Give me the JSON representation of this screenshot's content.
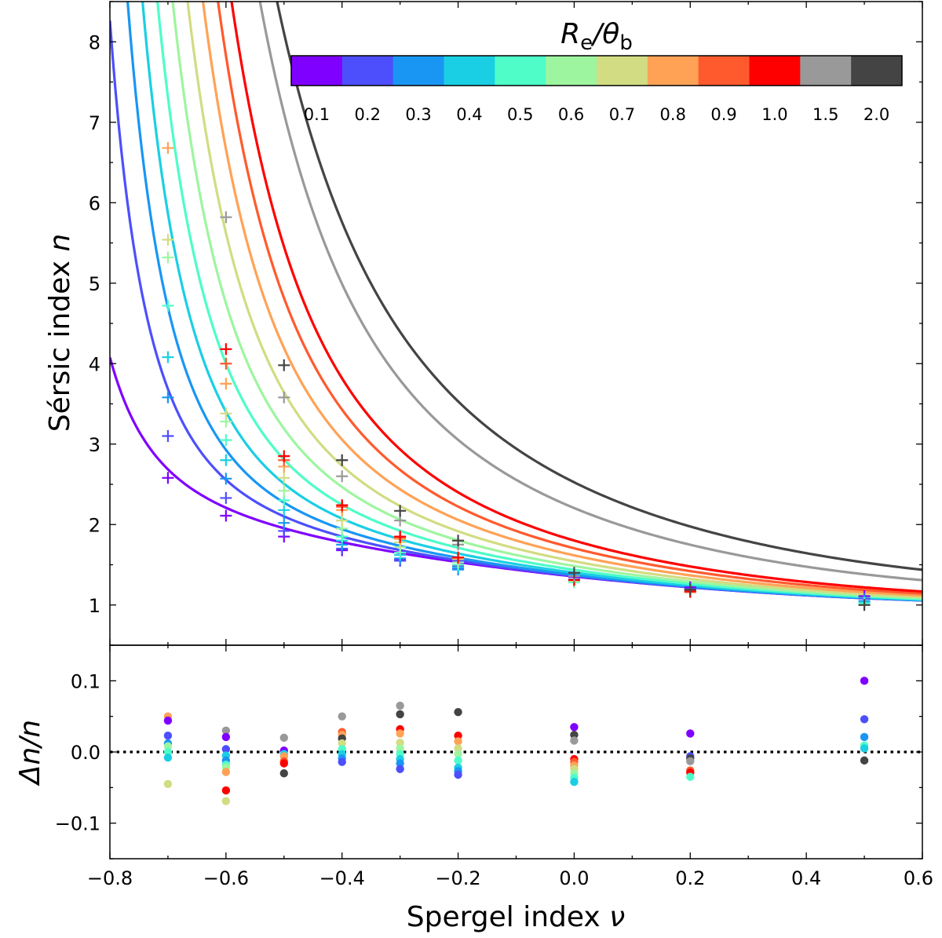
{
  "chart_data": [
    {
      "type": "line",
      "panel": "top",
      "ylabel_text": "Sérsic index",
      "ylabel_var": "n",
      "xlabel": "",
      "xlim": [
        -0.8,
        0.6
      ],
      "ylim": [
        0.5,
        8.5
      ],
      "yticks": [
        1,
        2,
        3,
        4,
        5,
        6,
        7,
        8
      ],
      "ytick_labels": [
        "1",
        "2",
        "3",
        "4",
        "5",
        "6",
        "7",
        "8"
      ],
      "colorbar": {
        "title_main": "R",
        "title_sub1": "e",
        "title_mid": "/θ",
        "title_sub2": "b",
        "labels": [
          "0.1",
          "0.2",
          "0.3",
          "0.4",
          "0.5",
          "0.6",
          "0.7",
          "0.8",
          "0.9",
          "1.0",
          "1.5",
          "2.0"
        ],
        "colors": [
          "#7f00ff",
          "#4d4ffc",
          "#1996f3",
          "#1acfe3",
          "#4efdc8",
          "#9ef5a0",
          "#d2dc82",
          "#ffa256",
          "#ff5a2d",
          "#ff0000",
          "#999999",
          "#444444"
        ]
      },
      "curve_model": "n(ν) = 1.325 − 0.70·ν + 0.40·ν² + A / (ν + 1)^p",
      "series": [
        {
          "name": "0.1",
          "color": "#7f00ff",
          "A": 0.0295,
          "p": 2.6
        },
        {
          "name": "0.2",
          "color": "#4d4ffc",
          "A": 0.0355,
          "p": 3.2
        },
        {
          "name": "0.3",
          "color": "#1996f3",
          "A": 0.0505,
          "p": 3.3
        },
        {
          "name": "0.4",
          "color": "#1acfe3",
          "A": 0.077,
          "p": 3.25
        },
        {
          "name": "0.5",
          "color": "#4efdc8",
          "A": 0.1125,
          "p": 3.2
        },
        {
          "name": "0.6",
          "color": "#9ef5a0",
          "A": 0.1595,
          "p": 3.15
        },
        {
          "name": "0.7",
          "color": "#d2dc82",
          "A": 0.218,
          "p": 3.1
        },
        {
          "name": "0.8",
          "color": "#ffa256",
          "A": 0.292,
          "p": 3.05
        },
        {
          "name": "0.9",
          "color": "#ff5a2d",
          "A": 0.38,
          "p": 3.0
        },
        {
          "name": "1.0",
          "color": "#ff0000",
          "A": 0.476,
          "p": 2.95
        },
        {
          "name": "1.5",
          "color": "#999999",
          "A": 0.88,
          "p": 2.6
        },
        {
          "name": "2.0",
          "color": "#444444",
          "A": 1.2,
          "p": 2.4
        }
      ],
      "measured_points": [
        {
          "series": 0,
          "x": -0.7,
          "y": 2.58
        },
        {
          "series": 0,
          "x": -0.6,
          "y": 2.11
        },
        {
          "series": 0,
          "x": -0.5,
          "y": 1.85
        },
        {
          "series": 0,
          "x": -0.4,
          "y": 1.68
        },
        {
          "series": 0,
          "x": -0.3,
          "y": 1.56
        },
        {
          "series": 0,
          "x": -0.2,
          "y": 1.48
        },
        {
          "series": 0,
          "x": 0.0,
          "y": 1.35
        },
        {
          "series": 0,
          "x": 0.2,
          "y": 1.22
        },
        {
          "series": 0,
          "x": 0.5,
          "y": 1.11
        },
        {
          "series": 1,
          "x": -0.7,
          "y": 3.1
        },
        {
          "series": 1,
          "x": -0.6,
          "y": 2.33
        },
        {
          "series": 1,
          "x": -0.5,
          "y": 1.92
        },
        {
          "series": 1,
          "x": -0.4,
          "y": 1.7
        },
        {
          "series": 1,
          "x": -0.3,
          "y": 1.55
        },
        {
          "series": 1,
          "x": -0.2,
          "y": 1.45
        },
        {
          "series": 1,
          "x": 0.0,
          "y": 1.32
        },
        {
          "series": 1,
          "x": 0.2,
          "y": 1.2
        },
        {
          "series": 1,
          "x": 0.5,
          "y": 1.08
        },
        {
          "series": 2,
          "x": -0.7,
          "y": 3.58
        },
        {
          "series": 2,
          "x": -0.6,
          "y": 2.57
        },
        {
          "series": 2,
          "x": -0.5,
          "y": 2.02
        },
        {
          "series": 2,
          "x": -0.4,
          "y": 1.75
        },
        {
          "series": 2,
          "x": -0.3,
          "y": 1.58
        },
        {
          "series": 2,
          "x": -0.2,
          "y": 1.44
        },
        {
          "series": 2,
          "x": 0.0,
          "y": 1.3
        },
        {
          "series": 2,
          "x": 0.2,
          "y": 1.18
        },
        {
          "series": 2,
          "x": 0.5,
          "y": 1.05
        },
        {
          "series": 3,
          "x": -0.7,
          "y": 4.08
        },
        {
          "series": 3,
          "x": -0.6,
          "y": 2.8
        },
        {
          "series": 3,
          "x": -0.5,
          "y": 2.18
        },
        {
          "series": 3,
          "x": -0.4,
          "y": 1.8
        },
        {
          "series": 3,
          "x": -0.3,
          "y": 1.62
        },
        {
          "series": 3,
          "x": -0.2,
          "y": 1.47
        },
        {
          "series": 3,
          "x": 0.0,
          "y": 1.29
        },
        {
          "series": 3,
          "x": 0.2,
          "y": 1.18
        },
        {
          "series": 3,
          "x": 0.5,
          "y": 1.03
        },
        {
          "series": 4,
          "x": -0.7,
          "y": 4.72
        },
        {
          "series": 4,
          "x": -0.6,
          "y": 3.05
        },
        {
          "series": 4,
          "x": -0.5,
          "y": 2.3
        },
        {
          "series": 4,
          "x": -0.4,
          "y": 1.85
        },
        {
          "series": 4,
          "x": -0.3,
          "y": 1.65
        },
        {
          "series": 4,
          "x": -0.2,
          "y": 1.5
        },
        {
          "series": 4,
          "x": 0.0,
          "y": 1.28
        },
        {
          "series": 4,
          "x": 0.2,
          "y": 1.17
        },
        {
          "series": 4,
          "x": 0.5,
          "y": 1.02
        },
        {
          "series": 5,
          "x": -0.7,
          "y": 5.32
        },
        {
          "series": 5,
          "x": -0.6,
          "y": 3.28
        },
        {
          "series": 5,
          "x": -0.5,
          "y": 2.42
        },
        {
          "series": 5,
          "x": -0.4,
          "y": 1.95
        },
        {
          "series": 5,
          "x": -0.3,
          "y": 1.72
        },
        {
          "series": 5,
          "x": -0.2,
          "y": 1.53
        },
        {
          "series": 5,
          "x": 0.0,
          "y": 1.29
        },
        {
          "series": 5,
          "x": 0.2,
          "y": 1.17
        },
        {
          "series": 6,
          "x": -0.7,
          "y": 5.54
        },
        {
          "series": 6,
          "x": -0.6,
          "y": 3.38
        },
        {
          "series": 6,
          "x": -0.5,
          "y": 2.58
        },
        {
          "series": 6,
          "x": -0.4,
          "y": 2.05
        },
        {
          "series": 6,
          "x": -0.3,
          "y": 1.78
        },
        {
          "series": 6,
          "x": -0.2,
          "y": 1.57
        },
        {
          "series": 6,
          "x": 0.0,
          "y": 1.31
        },
        {
          "series": 7,
          "x": -0.7,
          "y": 6.68
        },
        {
          "series": 7,
          "x": -0.6,
          "y": 3.75
        },
        {
          "series": 7,
          "x": -0.5,
          "y": 2.72
        },
        {
          "series": 7,
          "x": -0.4,
          "y": 2.18
        },
        {
          "series": 7,
          "x": -0.3,
          "y": 1.82
        },
        {
          "series": 7,
          "x": -0.2,
          "y": 1.58
        },
        {
          "series": 7,
          "x": 0.0,
          "y": 1.31
        },
        {
          "series": 8,
          "x": -0.6,
          "y": 4.0
        },
        {
          "series": 8,
          "x": -0.5,
          "y": 2.8
        },
        {
          "series": 8,
          "x": -0.4,
          "y": 2.22
        },
        {
          "series": 8,
          "x": -0.3,
          "y": 1.84
        },
        {
          "series": 8,
          "x": 0.2,
          "y": 1.16
        },
        {
          "series": 9,
          "x": -0.6,
          "y": 4.18
        },
        {
          "series": 9,
          "x": -0.5,
          "y": 2.85
        },
        {
          "series": 9,
          "x": -0.4,
          "y": 2.24
        },
        {
          "series": 9,
          "x": -0.3,
          "y": 1.85
        },
        {
          "series": 9,
          "x": -0.2,
          "y": 1.59
        },
        {
          "series": 9,
          "x": 0.0,
          "y": 1.31
        },
        {
          "series": 9,
          "x": 0.2,
          "y": 1.17
        },
        {
          "series": 10,
          "x": -0.6,
          "y": 5.82
        },
        {
          "series": 10,
          "x": -0.5,
          "y": 3.58
        },
        {
          "series": 10,
          "x": -0.4,
          "y": 2.6
        },
        {
          "series": 10,
          "x": -0.3,
          "y": 2.05
        },
        {
          "series": 10,
          "x": -0.2,
          "y": 1.75
        },
        {
          "series": 10,
          "x": 0.0,
          "y": 1.36
        },
        {
          "series": 11,
          "x": -0.5,
          "y": 3.98
        },
        {
          "series": 11,
          "x": -0.4,
          "y": 2.8
        },
        {
          "series": 11,
          "x": -0.3,
          "y": 2.17
        },
        {
          "series": 11,
          "x": -0.2,
          "y": 1.8
        },
        {
          "series": 11,
          "x": 0.0,
          "y": 1.4
        },
        {
          "series": 11,
          "x": 0.2,
          "y": 1.19
        },
        {
          "series": 11,
          "x": 0.5,
          "y": 1.0
        }
      ]
    },
    {
      "type": "scatter",
      "panel": "bottom",
      "ylabel_var": "Δn/n",
      "xlabel_text": "Spergel index",
      "xlabel_var": "ν",
      "xlim": [
        -0.8,
        0.6
      ],
      "ylim": [
        -0.15,
        0.15
      ],
      "xticks": [
        -0.8,
        -0.6,
        -0.4,
        -0.2,
        0.0,
        0.2,
        0.4,
        0.6
      ],
      "xtick_labels": [
        "−0.8",
        "−0.6",
        "−0.4",
        "−0.2",
        "0.0",
        "0.2",
        "0.4",
        "0.6"
      ],
      "yticks": [
        -0.1,
        0.0,
        0.1
      ],
      "ytick_labels": [
        "−0.1",
        "0.0",
        "0.1"
      ],
      "reference_line_y": 0.0,
      "points": [
        {
          "series": 7,
          "x": -0.7,
          "y": 0.05
        },
        {
          "series": 0,
          "x": -0.7,
          "y": 0.044
        },
        {
          "series": 1,
          "x": -0.7,
          "y": 0.023
        },
        {
          "series": 2,
          "x": -0.7,
          "y": 0.012
        },
        {
          "series": 5,
          "x": -0.7,
          "y": 0.008
        },
        {
          "series": 4,
          "x": -0.7,
          "y": 0.0
        },
        {
          "series": 3,
          "x": -0.7,
          "y": -0.008
        },
        {
          "series": 6,
          "x": -0.7,
          "y": -0.045
        },
        {
          "series": 10,
          "x": -0.6,
          "y": 0.03
        },
        {
          "series": 0,
          "x": -0.6,
          "y": 0.021
        },
        {
          "series": 1,
          "x": -0.6,
          "y": 0.004
        },
        {
          "series": 3,
          "x": -0.6,
          "y": -0.005
        },
        {
          "series": 2,
          "x": -0.6,
          "y": -0.012
        },
        {
          "series": 4,
          "x": -0.6,
          "y": -0.018
        },
        {
          "series": 5,
          "x": -0.6,
          "y": -0.022
        },
        {
          "series": 7,
          "x": -0.6,
          "y": -0.028
        },
        {
          "series": 9,
          "x": -0.6,
          "y": -0.054
        },
        {
          "series": 6,
          "x": -0.6,
          "y": -0.069
        },
        {
          "series": 10,
          "x": -0.5,
          "y": 0.02
        },
        {
          "series": 0,
          "x": -0.5,
          "y": 0.002
        },
        {
          "series": 3,
          "x": -0.5,
          "y": -0.003
        },
        {
          "series": 7,
          "x": -0.5,
          "y": -0.006
        },
        {
          "series": 8,
          "x": -0.5,
          "y": -0.013
        },
        {
          "series": 9,
          "x": -0.5,
          "y": -0.016
        },
        {
          "series": 11,
          "x": -0.5,
          "y": -0.03
        },
        {
          "series": 10,
          "x": -0.4,
          "y": 0.05
        },
        {
          "series": 8,
          "x": -0.4,
          "y": 0.028
        },
        {
          "series": 7,
          "x": -0.4,
          "y": 0.024
        },
        {
          "series": 11,
          "x": -0.4,
          "y": 0.019
        },
        {
          "series": 6,
          "x": -0.4,
          "y": 0.012
        },
        {
          "series": 4,
          "x": -0.4,
          "y": 0.004
        },
        {
          "series": 3,
          "x": -0.4,
          "y": -0.003
        },
        {
          "series": 2,
          "x": -0.4,
          "y": -0.009
        },
        {
          "series": 1,
          "x": -0.4,
          "y": -0.014
        },
        {
          "series": 10,
          "x": -0.3,
          "y": 0.065
        },
        {
          "series": 11,
          "x": -0.3,
          "y": 0.053
        },
        {
          "series": 9,
          "x": -0.3,
          "y": 0.032
        },
        {
          "series": 7,
          "x": -0.3,
          "y": 0.026
        },
        {
          "series": 6,
          "x": -0.3,
          "y": 0.013
        },
        {
          "series": 5,
          "x": -0.3,
          "y": 0.005
        },
        {
          "series": 4,
          "x": -0.3,
          "y": -0.003
        },
        {
          "series": 3,
          "x": -0.3,
          "y": -0.01
        },
        {
          "series": 2,
          "x": -0.3,
          "y": -0.016
        },
        {
          "series": 1,
          "x": -0.3,
          "y": -0.024
        },
        {
          "series": 11,
          "x": -0.2,
          "y": 0.056
        },
        {
          "series": 9,
          "x": -0.2,
          "y": 0.023
        },
        {
          "series": 7,
          "x": -0.2,
          "y": 0.015
        },
        {
          "series": 6,
          "x": -0.2,
          "y": 0.005
        },
        {
          "series": 5,
          "x": -0.2,
          "y": -0.003
        },
        {
          "series": 4,
          "x": -0.2,
          "y": -0.012
        },
        {
          "series": 3,
          "x": -0.2,
          "y": -0.022
        },
        {
          "series": 2,
          "x": -0.2,
          "y": -0.027
        },
        {
          "series": 1,
          "x": -0.2,
          "y": -0.032
        },
        {
          "series": 0,
          "x": 0.0,
          "y": 0.035
        },
        {
          "series": 11,
          "x": 0.0,
          "y": 0.024
        },
        {
          "series": 10,
          "x": 0.0,
          "y": 0.016
        },
        {
          "series": 9,
          "x": 0.0,
          "y": -0.01
        },
        {
          "series": 8,
          "x": 0.0,
          "y": -0.014
        },
        {
          "series": 7,
          "x": 0.0,
          "y": -0.019
        },
        {
          "series": 6,
          "x": 0.0,
          "y": -0.024
        },
        {
          "series": 5,
          "x": 0.0,
          "y": -0.03
        },
        {
          "series": 4,
          "x": 0.0,
          "y": -0.036
        },
        {
          "series": 3,
          "x": 0.0,
          "y": -0.042
        },
        {
          "series": 0,
          "x": 0.2,
          "y": 0.026
        },
        {
          "series": 1,
          "x": 0.2,
          "y": -0.006
        },
        {
          "series": 11,
          "x": 0.2,
          "y": -0.009
        },
        {
          "series": 10,
          "x": 0.2,
          "y": -0.013
        },
        {
          "series": 8,
          "x": 0.2,
          "y": -0.026
        },
        {
          "series": 9,
          "x": 0.2,
          "y": -0.029
        },
        {
          "series": 4,
          "x": 0.2,
          "y": -0.035
        },
        {
          "series": 0,
          "x": 0.5,
          "y": 0.1
        },
        {
          "series": 1,
          "x": 0.5,
          "y": 0.046
        },
        {
          "series": 2,
          "x": 0.5,
          "y": 0.021
        },
        {
          "series": 4,
          "x": 0.5,
          "y": 0.009
        },
        {
          "series": 3,
          "x": 0.5,
          "y": 0.005
        },
        {
          "series": 11,
          "x": 0.5,
          "y": -0.012
        }
      ]
    }
  ]
}
